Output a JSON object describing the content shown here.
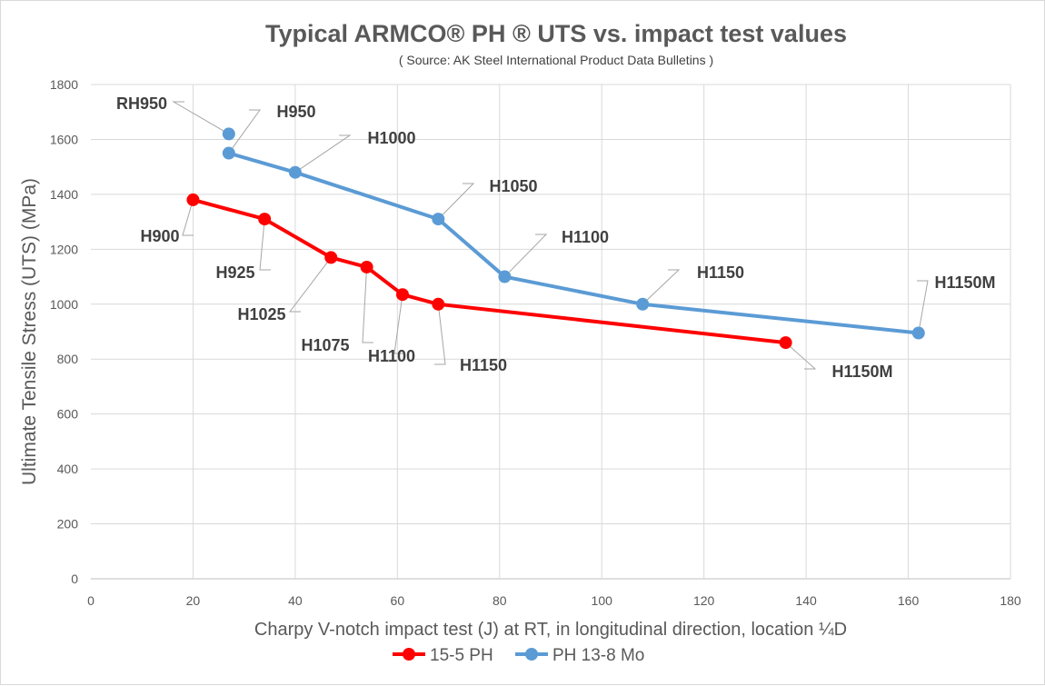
{
  "chart_data": {
    "type": "line",
    "title": "Typical ARMCO® PH ® UTS vs. impact test values",
    "subtitle": "( Source: AK Steel International Product Data Bulletins )",
    "xlabel": "Charpy V-notch impact test (J) at RT, in longitudinal direction, location ¼D",
    "ylabel": "Ultimate Tensile Stress (UTS)  (MPa)",
    "xlim": [
      0,
      180
    ],
    "ylim": [
      0,
      1800
    ],
    "xticks": [
      0,
      20,
      40,
      60,
      80,
      100,
      120,
      140,
      160,
      180
    ],
    "yticks": [
      0,
      200,
      400,
      600,
      800,
      1000,
      1200,
      1400,
      1600,
      1800
    ],
    "grid": true,
    "legend": "bottom",
    "series": [
      {
        "name": "15-5 PH",
        "color": "#ff0000",
        "points": [
          {
            "x": 20,
            "y": 1380,
            "label": "H900"
          },
          {
            "x": 34,
            "y": 1310,
            "label": "H925"
          },
          {
            "x": 47,
            "y": 1170,
            "label": "H1025"
          },
          {
            "x": 54,
            "y": 1135,
            "label": "H1075"
          },
          {
            "x": 61,
            "y": 1035,
            "label": "H1100"
          },
          {
            "x": 68,
            "y": 1000,
            "label": "H1150"
          },
          {
            "x": 136,
            "y": 860,
            "label": "H1150M"
          }
        ]
      },
      {
        "name": "PH 13-8 Mo",
        "color": "#5b9bd5",
        "points": [
          {
            "x": 27,
            "y": 1620,
            "label": "RH950"
          },
          {
            "x": 27,
            "y": 1550,
            "label": "H950"
          },
          {
            "x": 40,
            "y": 1480,
            "label": "H1000"
          },
          {
            "x": 68,
            "y": 1310,
            "label": "H1050"
          },
          {
            "x": 81,
            "y": 1100,
            "label": "H1100"
          },
          {
            "x": 108,
            "y": 1000,
            "label": "H1150"
          },
          {
            "x": 162,
            "y": 895,
            "label": "H1150M"
          }
        ]
      }
    ]
  }
}
